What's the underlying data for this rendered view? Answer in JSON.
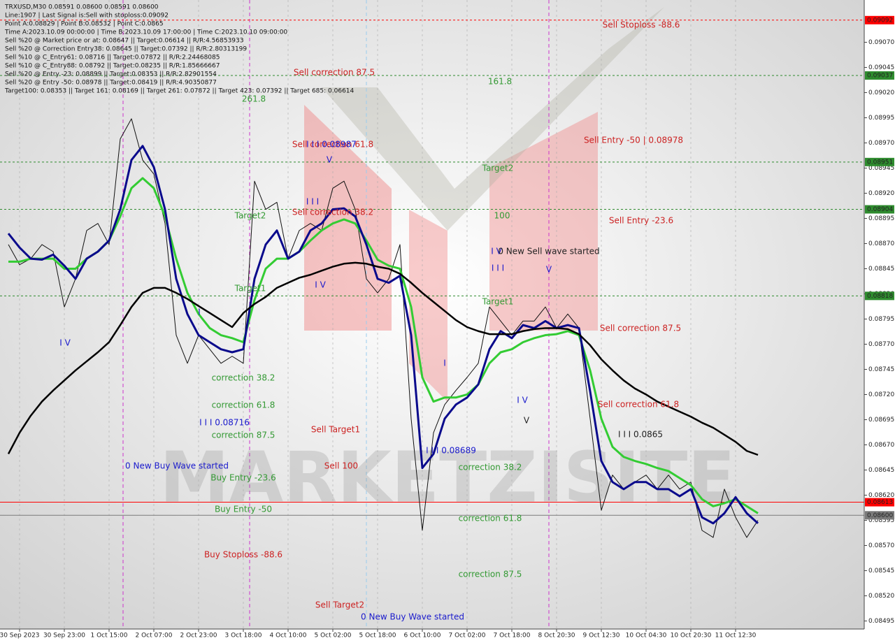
{
  "chart_data": {
    "type": "line",
    "info": [
      "TRXUSD,M30  0.08591 0.08600 0.08591 0.08600",
      "Line:1907 | Last Signal is:Sell with stoploss:0.09092",
      "Point A:0.08829 | Point B:0.08532 | Point C:0.0865",
      "Time A:2023.10.09 00:00:00 | Time B:2023.10.09 17:00:00 | Time C:2023.10.10 09:00:00",
      "Sell %20 @ Market price or at: 0.08647 || Target:0.06614 || R/R:4.56853933",
      "Sell %20 @ Correction Entry38: 0.08645 || Target:0.07392 || R/R:2.80313199",
      "Sell %10 @ C_Entry61: 0.08716 || Target:0.07872 || R/R:2.24468085",
      "Sell %10 @ C_Entry88: 0.08792 || Target:0.08235 || R/R:1.85666667",
      "Sell %20 @ Entry -23: 0.08899 || Target:0.08353 || R/R:2.82901554",
      "Sell %20 @ Entry -50: 0.08978 || Target:0.08419 || R/R:4.90350877",
      "Target100: 0.08353 || Target 161: 0.08169 || Target 261: 0.07872 || Target 423: 0.07392 || Target 685: 0.06614"
    ],
    "watermark": "MARKETZISITE",
    "categories": [
      null,
      "30 Sep 2023",
      null,
      null,
      null,
      "30 Sep 23:00",
      null,
      null,
      null,
      "1 Oct 15:00",
      null,
      null,
      null,
      "2 Oct 07:00",
      null,
      null,
      null,
      "2 Oct 23:00",
      null,
      null,
      null,
      "3 Oct 18:00",
      null,
      null,
      null,
      "4 Oct 10:00",
      null,
      null,
      null,
      "5 Oct 02:00",
      null,
      null,
      null,
      "5 Oct 18:00",
      null,
      null,
      null,
      "6 Oct 10:00",
      null,
      null,
      null,
      "7 Oct 02:00",
      null,
      null,
      null,
      "7 Oct 18:00",
      null,
      null,
      null,
      "8 Oct 20:30",
      null,
      null,
      null,
      "9 Oct 12:30",
      null,
      null,
      null,
      "10 Oct 04:30",
      null,
      null,
      null,
      "10 Oct 20:30",
      null,
      null,
      null,
      "11 Oct 12:30",
      null,
      null
    ],
    "series": [
      {
        "color": "#111111",
        "values": [
          0.08869,
          0.08849,
          0.08855,
          0.08869,
          0.08862,
          0.08807,
          0.08835,
          0.08883,
          0.0889,
          0.08869,
          0.08974,
          0.08994,
          0.08953,
          0.08939,
          0.0889,
          0.08779,
          0.08751,
          0.08779,
          0.08765,
          0.08751,
          0.08758,
          0.08751,
          0.08932,
          0.08904,
          0.08911,
          0.08855,
          0.08883,
          0.0889,
          0.08883,
          0.08925,
          0.08932,
          0.08904,
          0.08835,
          0.08821,
          0.08835,
          0.08869,
          0.08696,
          0.08585,
          0.08682,
          0.0871,
          0.08724,
          0.08737,
          0.08751,
          0.08807,
          0.08793,
          0.08779,
          0.08793,
          0.08793,
          0.08807,
          0.08786,
          0.088,
          0.08786,
          0.08696,
          0.08605,
          0.0864,
          0.08626,
          0.08633,
          0.0864,
          0.08626,
          0.0864,
          0.08626,
          0.08633,
          0.08585,
          0.08578,
          0.08626,
          0.08598,
          0.08578,
          0.08595
        ]
      },
      {
        "color": "#33cc33",
        "values": [
          0.08852,
          0.08852,
          0.08855,
          0.08855,
          0.08855,
          0.08845,
          0.08845,
          0.08855,
          0.08862,
          0.08873,
          0.08897,
          0.08925,
          0.08935,
          0.08925,
          0.08897,
          0.08855,
          0.08821,
          0.088,
          0.08786,
          0.08779,
          0.08776,
          0.08772,
          0.08814,
          0.08845,
          0.08855,
          0.08855,
          0.08862,
          0.08873,
          0.08883,
          0.0889,
          0.08894,
          0.0889,
          0.08873,
          0.08854,
          0.08848,
          0.08845,
          0.08807,
          0.08737,
          0.08713,
          0.08717,
          0.08717,
          0.0872,
          0.0873,
          0.08751,
          0.08762,
          0.08765,
          0.08772,
          0.08776,
          0.08779,
          0.0878,
          0.08783,
          0.08779,
          0.08744,
          0.08696,
          0.08668,
          0.08658,
          0.08654,
          0.08651,
          0.08647,
          0.08644,
          0.08637,
          0.0863,
          0.08616,
          0.08609,
          0.08612,
          0.08616,
          0.08609,
          0.08602
        ]
      },
      {
        "color": "#0a0a8c",
        "values": [
          0.0888,
          0.08866,
          0.08855,
          0.08854,
          0.08859,
          0.08848,
          0.08835,
          0.08855,
          0.08862,
          0.08873,
          0.08904,
          0.08953,
          0.08967,
          0.08946,
          0.08904,
          0.08835,
          0.088,
          0.08779,
          0.08772,
          0.08765,
          0.08762,
          0.08765,
          0.08835,
          0.08869,
          0.08883,
          0.08855,
          0.08862,
          0.08883,
          0.0889,
          0.08904,
          0.08905,
          0.08897,
          0.08869,
          0.08835,
          0.08831,
          0.08838,
          0.08779,
          0.08647,
          0.08661,
          0.08696,
          0.0871,
          0.08717,
          0.0873,
          0.08765,
          0.08783,
          0.08776,
          0.08789,
          0.08786,
          0.08793,
          0.08786,
          0.08789,
          0.08786,
          0.08723,
          0.08654,
          0.08633,
          0.08626,
          0.08633,
          0.08633,
          0.08626,
          0.08626,
          0.08619,
          0.08626,
          0.08598,
          0.08592,
          0.08602,
          0.08618,
          0.08602,
          0.08592
        ]
      },
      {
        "color": "#000000",
        "values": [
          0.08661,
          0.08682,
          0.08699,
          0.08713,
          0.08724,
          0.08734,
          0.08744,
          0.08753,
          0.08762,
          0.08772,
          0.08789,
          0.08807,
          0.08821,
          0.08826,
          0.08826,
          0.08821,
          0.08815,
          0.08808,
          0.08801,
          0.08794,
          0.08787,
          0.08801,
          0.0881,
          0.08817,
          0.08826,
          0.08831,
          0.08836,
          0.08839,
          0.08843,
          0.08847,
          0.0885,
          0.08851,
          0.0885,
          0.08847,
          0.08845,
          0.0884,
          0.08831,
          0.08821,
          0.08812,
          0.08803,
          0.08794,
          0.08787,
          0.08783,
          0.0878,
          0.0878,
          0.0878,
          0.08783,
          0.08785,
          0.08786,
          0.08786,
          0.08785,
          0.0878,
          0.08769,
          0.08755,
          0.08744,
          0.08734,
          0.08726,
          0.0872,
          0.08713,
          0.08708,
          0.08703,
          0.08698,
          0.08692,
          0.08687,
          0.0868,
          0.08673,
          0.08664,
          0.0866
        ]
      }
    ],
    "ylim": [
      0.08487,
      0.09112
    ],
    "yticks": [
      {
        "value": 0.0907,
        "label": "0.09070"
      },
      0.09045,
      {
        "value": 0.0902,
        "label": "0.09020"
      },
      0.08995,
      {
        "value": 0.0897,
        "label": "0.08970"
      },
      0.08945,
      {
        "value": 0.0892,
        "label": "0.08920"
      },
      0.08895,
      {
        "value": 0.0887,
        "label": "0.08870"
      },
      0.08845,
      {
        "value": 0.0882,
        "label": "0.08820"
      },
      0.08795,
      {
        "value": 0.0877,
        "label": "0.08770"
      },
      0.08745,
      {
        "value": 0.0872,
        "label": "0.08720"
      },
      0.08695,
      {
        "value": 0.0867,
        "label": "0.08670"
      },
      0.08645,
      {
        "value": 0.0862,
        "label": "0.08620"
      },
      0.08595,
      {
        "value": 0.0857,
        "label": "0.08570"
      },
      0.08545,
      {
        "value": 0.0852,
        "label": "0.08520"
      },
      0.08495
    ],
    "levels": [
      {
        "value": 0.09092,
        "label": "0.09092",
        "color": "#ff0000"
      },
      {
        "value": 0.09037,
        "label": "0.09037",
        "color": "#2e8b2e"
      },
      {
        "value": 0.08951,
        "label": "0.08951",
        "color": "#2e8b2e"
      },
      {
        "value": 0.08904,
        "label": "0.08904",
        "color": "#2e8b2e"
      },
      {
        "value": 0.08818,
        "label": "0.08818",
        "color": "#2e8b2e"
      },
      {
        "value": 0.08613,
        "label": "0.08613",
        "color": "#ff0000"
      },
      {
        "value": 0.086,
        "label": "0.08600",
        "color": "#7a7a7a"
      }
    ],
    "annotations": [
      {
        "text": "Sell Stoploss -88.6",
        "color": "#cc2222"
      },
      {
        "text": "Sell correction 87.5",
        "color": "#cc2222"
      },
      {
        "text": "161.8",
        "color": "#339933"
      },
      {
        "text": "261.8",
        "color": "#339933"
      },
      {
        "text": "Sell Entry -50 | 0.08978",
        "color": "#cc2222"
      },
      {
        "text": "Sell correction 61.8",
        "color": "#cc2222"
      },
      {
        "text": "I I I 0.08987",
        "color": "#1a1acc"
      },
      {
        "text": "Target2",
        "color": "#339933"
      },
      {
        "text": "Sell correction 38.2",
        "color": "#cc2222"
      },
      {
        "text": "Target2",
        "color": "#339933"
      },
      {
        "text": "100",
        "color": "#339933"
      },
      {
        "text": "Sell Entry -23.6",
        "color": "#cc2222"
      },
      {
        "text": "I V",
        "color": "#1a1acc"
      },
      {
        "text": "0 New Sell wave started",
        "color": "#222222"
      },
      {
        "text": "I I I",
        "color": "#1a1acc"
      },
      {
        "text": "V",
        "color": "#1a1acc"
      },
      {
        "text": "Target1",
        "color": "#339933"
      },
      {
        "text": "Target1",
        "color": "#339933"
      },
      {
        "text": "Sell correction 87.5",
        "color": "#cc2222"
      },
      {
        "text": "I V",
        "color": "#1a1acc"
      },
      {
        "text": "I",
        "color": "#1a1acc"
      },
      {
        "text": "I V",
        "color": "#1a1acc"
      },
      {
        "text": "I I I",
        "color": "#1a1acc"
      },
      {
        "text": "V",
        "color": "#1a1acc"
      },
      {
        "text": "correction 38.2",
        "color": "#339933"
      },
      {
        "text": "I",
        "color": "#1a1acc"
      },
      {
        "text": "I V",
        "color": "#1a1acc"
      },
      {
        "text": "V",
        "color": "#222222"
      },
      {
        "text": "Sell correction 61.8",
        "color": "#cc2222"
      },
      {
        "text": "correction 61.8",
        "color": "#339933"
      },
      {
        "text": "I I I 0.08716",
        "color": "#1a1acc"
      },
      {
        "text": "I I I 0.0865",
        "color": "#222222"
      },
      {
        "text": "Sell Target1",
        "color": "#cc2222"
      },
      {
        "text": "correction 87.5",
        "color": "#339933"
      },
      {
        "text": "I I I 0.08689",
        "color": "#1a1acc"
      },
      {
        "text": "0 New Buy Wave started",
        "color": "#1a1acc"
      },
      {
        "text": "Sell 100",
        "color": "#cc2222"
      },
      {
        "text": "correction 38.2",
        "color": "#339933"
      },
      {
        "text": "Buy Entry -23.6",
        "color": "#339933"
      },
      {
        "text": "Buy Entry -50",
        "color": "#339933"
      },
      {
        "text": "correction 61.8",
        "color": "#339933"
      },
      {
        "text": "Buy Stoploss -88.6",
        "color": "#cc2222"
      },
      {
        "text": "correction 87.5",
        "color": "#339933"
      },
      {
        "text": "Sell Target2",
        "color": "#cc2222"
      },
      {
        "text": "0 New Buy Wave started",
        "color": "#1a1acc"
      }
    ]
  }
}
